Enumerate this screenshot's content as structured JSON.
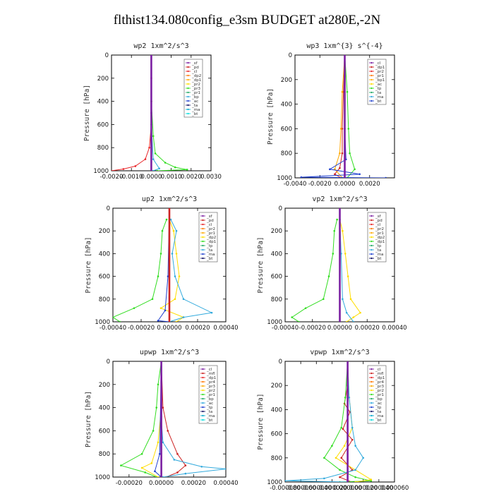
{
  "figure": {
    "title": "flthist134.080config_e3sm  BUDGET at280E,-2N"
  },
  "chart_data": [
    {
      "type": "line",
      "title": "wp2  1xm^2/s^3",
      "ylabel": "Pressure [hPa]",
      "xlim": [
        -0.002,
        0.003
      ],
      "ylim": [
        1000,
        0
      ],
      "xticks": [
        "-0.0020",
        "-0.0010",
        "0.0000",
        "0.0010",
        "0.0020",
        "0.0030"
      ],
      "yticks": [
        "0",
        "200",
        "400",
        "600",
        "800",
        "1000"
      ],
      "grid": false,
      "legend_position": "top-right",
      "legend": [
        "_sf",
        "_pd",
        "_cl",
        "_dp2",
        "_dp1",
        "_pr2",
        "_pr3",
        "_pr1",
        "_bp",
        "_ac",
        "_ta",
        "_ma",
        "_bt"
      ],
      "series": [
        {
          "name": "_dp1",
          "color": "#e8262a",
          "points": [
            [
              0,
              0
            ],
            [
              0,
              200
            ],
            [
              0,
              400
            ],
            [
              0,
              600
            ],
            [
              -0.0001,
              800
            ],
            [
              -0.0003,
              900
            ],
            [
              -0.0008,
              960
            ],
            [
              -0.0014,
              985
            ],
            [
              -0.002,
              1000
            ]
          ]
        },
        {
          "name": "_pr1",
          "color": "#33dd22",
          "points": [
            [
              0,
              0
            ],
            [
              0,
              400
            ],
            [
              0.0001,
              700
            ],
            [
              0.0002,
              850
            ],
            [
              0.0007,
              930
            ],
            [
              0.0012,
              970
            ],
            [
              0.0018,
              990
            ],
            [
              0.0003,
              1000
            ]
          ]
        },
        {
          "name": "_ac",
          "color": "#33aadd",
          "points": [
            [
              0,
              0
            ],
            [
              0,
              600
            ],
            [
              0.0001,
              900
            ],
            [
              0.0004,
              980
            ],
            [
              0.0001,
              1000
            ]
          ]
        },
        {
          "name": "_bt",
          "color": "#7b1fa2",
          "points": [
            [
              0,
              0
            ],
            [
              0,
              500
            ],
            [
              0,
              1000
            ]
          ]
        }
      ]
    },
    {
      "type": "line",
      "title": "wp3  1xm^{3} s^{-4}",
      "ylabel": "Pressure [hPa]",
      "xlim": [
        -0.004,
        0.004
      ],
      "ylim": [
        1000,
        0
      ],
      "xticks": [
        "-0.0040",
        "-0.0020",
        "0.0000",
        "0.0020"
      ],
      "yticks": [
        "0",
        "200",
        "400",
        "600",
        "800",
        "1000"
      ],
      "grid": false,
      "legend_position": "top-right",
      "legend": [
        "_cl",
        "_dp1",
        "_pr2",
        "_pr1",
        "_bp1",
        "_ac",
        "_tp",
        "_ta",
        "_ma",
        "_bt"
      ],
      "series": [
        {
          "name": "_dp1",
          "color": "#cc2222",
          "points": [
            [
              0,
              0
            ],
            [
              -0.0001,
              300
            ],
            [
              -0.0002,
              600
            ],
            [
              -0.0002,
              800
            ],
            [
              -0.0004,
              920
            ],
            [
              -0.0008,
              970
            ],
            [
              -0.0003,
              1000
            ]
          ]
        },
        {
          "name": "_pr1",
          "color": "#ffaa00",
          "points": [
            [
              0,
              0
            ],
            [
              -0.0002,
              300
            ],
            [
              -0.0003,
              600
            ],
            [
              -0.0004,
              800
            ],
            [
              -0.0008,
              930
            ],
            [
              -0.0002,
              1000
            ]
          ]
        },
        {
          "name": "_bp1",
          "color": "#33dd22",
          "points": [
            [
              0,
              0
            ],
            [
              0.0002,
              300
            ],
            [
              0.0003,
              600
            ],
            [
              0.0004,
              800
            ],
            [
              0.0008,
              930
            ],
            [
              0.0002,
              1000
            ]
          ]
        },
        {
          "name": "_tp",
          "color": "#1f3fcf",
          "points": [
            [
              0,
              0
            ],
            [
              0,
              600
            ],
            [
              0.0001,
              850
            ],
            [
              -0.0012,
              930
            ],
            [
              0.0012,
              970
            ],
            [
              -0.0035,
              995
            ],
            [
              0.0033,
              1000
            ]
          ]
        },
        {
          "name": "_bt",
          "color": "#7b1fa2",
          "points": [
            [
              0,
              0
            ],
            [
              0,
              1000
            ]
          ]
        }
      ]
    },
    {
      "type": "line",
      "title": "up2  1xm^2/s^3",
      "ylabel": "Pressure [hPa]",
      "xlim": [
        -0.0004,
        0.0004
      ],
      "ylim": [
        1000,
        0
      ],
      "xticks": [
        "-0.00040",
        "-0.00020",
        "0.00000",
        "0.00020",
        "0.00040"
      ],
      "yticks": [
        "0",
        "200",
        "400",
        "600",
        "800",
        "1000"
      ],
      "grid": false,
      "legend_position": "top-right",
      "legend": [
        "_sf",
        "_pd",
        "_cl",
        "_pr2",
        "_pr1",
        "_dp2",
        "_dp1",
        "_tp",
        "_ta",
        "_ma",
        "_bt"
      ],
      "series": [
        {
          "name": "_dp1",
          "color": "#33dd22",
          "points": [
            [
              -2e-05,
              100
            ],
            [
              -5e-05,
              200
            ],
            [
              -6e-05,
              400
            ],
            [
              -8e-05,
              600
            ],
            [
              -0.00012,
              800
            ],
            [
              -0.00025,
              880
            ],
            [
              -0.0004,
              960
            ],
            [
              -0.00035,
              1000
            ]
          ]
        },
        {
          "name": "_pr1",
          "color": "#ffdd00",
          "points": [
            [
              0,
              100
            ],
            [
              3e-05,
              200
            ],
            [
              5e-05,
              400
            ],
            [
              7e-05,
              600
            ],
            [
              4e-05,
              800
            ],
            [
              -6e-05,
              880
            ],
            [
              0.0001,
              960
            ],
            [
              5e-05,
              1000
            ]
          ]
        },
        {
          "name": "_tp",
          "color": "#33aadd",
          "points": [
            [
              1e-05,
              100
            ],
            [
              5e-05,
              200
            ],
            [
              2e-05,
              400
            ],
            [
              4e-05,
              600
            ],
            [
              0.0001,
              800
            ],
            [
              0.0003,
              920
            ],
            [
              0.0001,
              960
            ],
            [
              0,
              1000
            ]
          ]
        },
        {
          "name": "_pd",
          "color": "#1f3fcf",
          "points": [
            [
              0,
              0
            ],
            [
              -1e-05,
              600
            ],
            [
              -3e-05,
              900
            ],
            [
              -8e-05,
              990
            ],
            [
              0,
              1000
            ]
          ]
        },
        {
          "name": "_bt",
          "color": "#cc2222",
          "points": [
            [
              0,
              0
            ],
            [
              0,
              1000
            ]
          ]
        }
      ]
    },
    {
      "type": "line",
      "title": "vp2  1xm^2/s^3",
      "ylabel": "Pressure [hPa]",
      "xlim": [
        -0.0004,
        0.0004
      ],
      "ylim": [
        1000,
        0
      ],
      "xticks": [
        "-0.00040",
        "-0.00020",
        "0.00000",
        "0.00020",
        "0.00040"
      ],
      "yticks": [
        "0",
        "200",
        "400",
        "600",
        "800",
        "1000"
      ],
      "grid": false,
      "legend_position": "top-right",
      "legend": [
        "_sf",
        "_pd",
        "_cl",
        "_pr2",
        "_pr1",
        "_dp2",
        "_dp1",
        "_tp",
        "_ta",
        "_ma",
        "_bt"
      ],
      "series": [
        {
          "name": "_dp1",
          "color": "#33dd22",
          "points": [
            [
              -2e-05,
              100
            ],
            [
              -4e-05,
              200
            ],
            [
              -5e-05,
              400
            ],
            [
              -8e-05,
              600
            ],
            [
              -0.00012,
              800
            ],
            [
              -0.00025,
              880
            ],
            [
              -0.00035,
              960
            ],
            [
              -0.0003,
              1000
            ]
          ]
        },
        {
          "name": "_pr1",
          "color": "#ffdd00",
          "points": [
            [
              0,
              100
            ],
            [
              2e-05,
              200
            ],
            [
              4e-05,
              400
            ],
            [
              6e-05,
              600
            ],
            [
              8e-05,
              800
            ],
            [
              0.00015,
              920
            ],
            [
              0.0001,
              960
            ],
            [
              5e-05,
              1000
            ]
          ]
        },
        {
          "name": "_tp",
          "color": "#33aadd",
          "points": [
            [
              0,
              100
            ],
            [
              1e-05,
              400
            ],
            [
              2e-05,
              800
            ],
            [
              5e-05,
              920
            ],
            [
              0.0001,
              1000
            ]
          ]
        },
        {
          "name": "_bt",
          "color": "#7b1fa2",
          "points": [
            [
              0,
              0
            ],
            [
              0,
              1000
            ]
          ]
        }
      ]
    },
    {
      "type": "line",
      "title": "upwp  1xm^2/s^3",
      "ylabel": "Pressure [hPa]",
      "xlim": [
        -0.0003,
        0.0004
      ],
      "ylim": [
        1000,
        0
      ],
      "xticks": [
        "-0.00020",
        "0.00000",
        "0.00020",
        "0.00040"
      ],
      "yticks": [
        "0",
        "200",
        "400",
        "600",
        "800",
        "1000"
      ],
      "grid": false,
      "legend_position": "top-right",
      "legend": [
        "_cl",
        "_mfl",
        "_dp1",
        "_pr4",
        "_pr3",
        "_pr2",
        "_pr1",
        "_bp",
        "_ac",
        "_tp",
        "_ta",
        "_ma",
        "_bt"
      ],
      "series": [
        {
          "name": "_dp1",
          "color": "#cc2222",
          "points": [
            [
              0,
              0
            ],
            [
              1e-05,
              400
            ],
            [
              4e-05,
              600
            ],
            [
              0.0001,
              800
            ],
            [
              0.00015,
              900
            ],
            [
              0.0001,
              960
            ],
            [
              3e-05,
              1000
            ]
          ]
        },
        {
          "name": "_bp",
          "color": "#33dd22",
          "points": [
            [
              0,
              0
            ],
            [
              -2e-05,
              200
            ],
            [
              -3e-05,
              400
            ],
            [
              -5e-05,
              600
            ],
            [
              -0.00012,
              800
            ],
            [
              -0.00025,
              900
            ],
            [
              -0.0001,
              960
            ],
            [
              -3e-05,
              1000
            ]
          ]
        },
        {
          "name": "_pr1",
          "color": "#ffdd00",
          "points": [
            [
              0,
              0
            ],
            [
              0,
              400
            ],
            [
              -2e-05,
              700
            ],
            [
              -6e-05,
              880
            ],
            [
              -0.00012,
              920
            ],
            [
              -2e-05,
              1000
            ]
          ]
        },
        {
          "name": "_tp",
          "color": "#33aadd",
          "points": [
            [
              0,
              0
            ],
            [
              0,
              500
            ],
            [
              1e-05,
              700
            ],
            [
              8e-05,
              850
            ],
            [
              0.00025,
              910
            ],
            [
              0.0004,
              930
            ],
            [
              0.00015,
              970
            ],
            [
              1e-05,
              1000
            ]
          ]
        },
        {
          "name": "_ta",
          "color": "#1f3fcf",
          "points": [
            [
              0,
              0
            ],
            [
              -1e-05,
              800
            ],
            [
              -4e-05,
              950
            ],
            [
              0,
              1000
            ]
          ]
        },
        {
          "name": "_bt",
          "color": "#7b1fa2",
          "points": [
            [
              0,
              0
            ],
            [
              0,
              1000
            ]
          ]
        }
      ]
    },
    {
      "type": "line",
      "title": "vpwp  1xm^2/s^3",
      "ylabel": "Pressure [hPa]",
      "xlim": [
        -8e-05,
        6e-05
      ],
      "ylim": [
        1000,
        0
      ],
      "xticks": [
        "-0.000080",
        "-0.000060",
        "-0.000040",
        "-0.000020",
        "0.000000",
        "0.000020",
        "0.000040",
        "0.000060"
      ],
      "yticks": [
        "0",
        "200",
        "400",
        "600",
        "800",
        "1000"
      ],
      "grid": false,
      "legend_position": "top-right",
      "legend": [
        "_cl",
        "_mfl",
        "_dp1",
        "_pr4",
        "_pr3",
        "_pr2",
        "_pr1",
        "_bp",
        "_ac",
        "_tp",
        "_ta",
        "_ma",
        "_bt"
      ],
      "series": [
        {
          "name": "_dp1",
          "color": "#cc2222",
          "points": [
            [
              0,
              0
            ],
            [
              0,
              200
            ],
            [
              -4e-06,
              350
            ],
            [
              3e-06,
              420
            ],
            [
              -6e-06,
              560
            ],
            [
              6e-06,
              650
            ],
            [
              -8e-06,
              800
            ],
            [
              6e-06,
              900
            ],
            [
              -1e-05,
              960
            ],
            [
              5e-06,
              1000
            ]
          ]
        },
        {
          "name": "_bp",
          "color": "#33dd22",
          "points": [
            [
              0,
              0
            ],
            [
              -3e-06,
              300
            ],
            [
              -8e-06,
              550
            ],
            [
              -2e-05,
              700
            ],
            [
              -3e-05,
              800
            ],
            [
              -1e-05,
              900
            ],
            [
              1e-05,
              960
            ],
            [
              3e-05,
              990
            ],
            [
              -1e-05,
              1000
            ]
          ]
        },
        {
          "name": "_pr1",
          "color": "#ffdd00",
          "points": [
            [
              0,
              0
            ],
            [
              2e-06,
              300
            ],
            [
              6e-06,
              550
            ],
            [
              -4e-06,
              700
            ],
            [
              -1.5e-05,
              800
            ],
            [
              1e-05,
              900
            ],
            [
              3e-05,
              980
            ],
            [
              1e-05,
              1000
            ]
          ]
        },
        {
          "name": "_tp",
          "color": "#33aadd",
          "points": [
            [
              0,
              0
            ],
            [
              2e-06,
              300
            ],
            [
              6e-06,
              550
            ],
            [
              1e-05,
              700
            ],
            [
              2e-05,
              800
            ],
            [
              1e-05,
              900
            ],
            [
              -3e-05,
              970
            ],
            [
              -8e-05,
              990
            ],
            [
              0,
              1000
            ]
          ]
        },
        {
          "name": "_bt",
          "color": "#7b1fa2",
          "points": [
            [
              0,
              0
            ],
            [
              0,
              1000
            ]
          ]
        }
      ]
    }
  ]
}
